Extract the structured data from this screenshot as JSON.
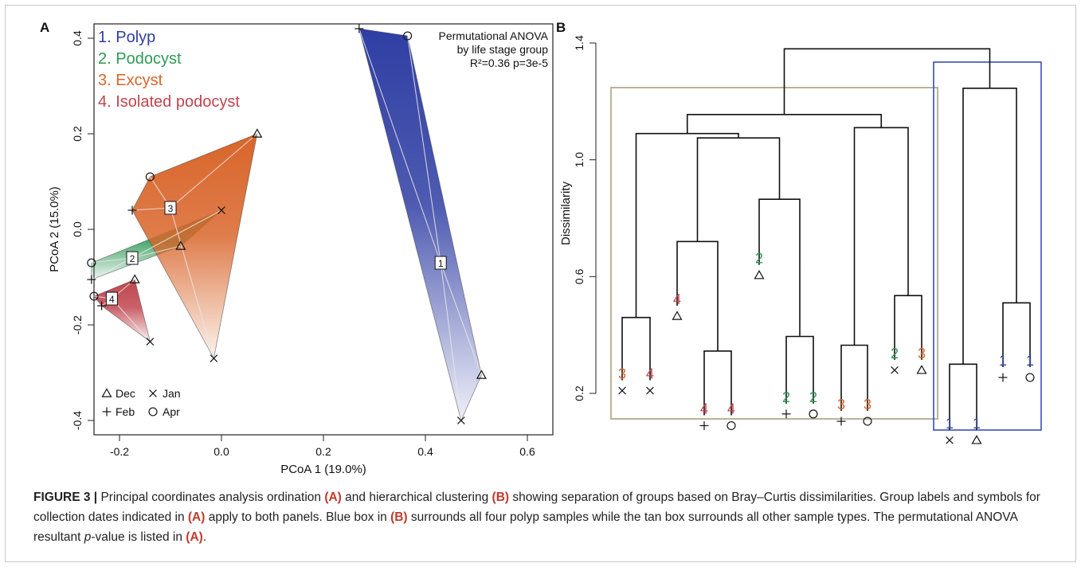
{
  "figure": {
    "colors": {
      "polyp": "#2f3ea3",
      "podocyst": "#2e9a55",
      "excyst": "#d9652a",
      "isolated": "#c0454e",
      "tan_box": "#b9b49a",
      "blue_box": "#3a4cb8"
    },
    "panel_a": {
      "panel_label": "A",
      "legend_groups": [
        "1. Polyp",
        "2. Podocyst",
        "3. Excyst",
        "4. Isolated podocyst"
      ],
      "annotation": [
        "Permutational ANOVA",
        "by life stage group",
        "R²=0.36 p=3e-5"
      ],
      "symbol_legend": [
        {
          "symbol": "triangle",
          "label": "Dec"
        },
        {
          "symbol": "cross",
          "label": "Jan"
        },
        {
          "symbol": "plus",
          "label": "Feb"
        },
        {
          "symbol": "circle",
          "label": "Apr"
        }
      ],
      "centroid_labels": [
        "1",
        "2",
        "3",
        "4"
      ]
    },
    "panel_b": {
      "panel_label": "B",
      "ylabel": "Dissimilarity"
    }
  },
  "chart_data": [
    {
      "type": "scatter",
      "title": "",
      "xlabel": "PCoA 1 (19.0%)",
      "ylabel": "PCoA 2 (15.0%)",
      "xlim": [
        -0.25,
        0.65
      ],
      "ylim": [
        -0.43,
        0.43
      ],
      "x_ticks": [
        "-0.2",
        "0.0",
        "0.2",
        "0.4",
        "0.6"
      ],
      "y_ticks": [
        "-0.4",
        "-0.2",
        "0.0",
        "0.2",
        "0.4"
      ],
      "grid": false,
      "legend": "top-left",
      "series": [
        {
          "name": "1. Polyp",
          "group": 1,
          "centroid": [
            0.43,
            -0.07
          ],
          "points": [
            {
              "x": 0.27,
              "y": 0.42,
              "month": "Feb"
            },
            {
              "x": 0.365,
              "y": 0.405,
              "month": "Apr"
            },
            {
              "x": 0.51,
              "y": -0.305,
              "month": "Dec"
            },
            {
              "x": 0.47,
              "y": -0.4,
              "month": "Jan"
            }
          ]
        },
        {
          "name": "2. Podocyst",
          "group": 2,
          "centroid": [
            -0.175,
            -0.06
          ],
          "points": [
            {
              "x": -0.255,
              "y": -0.07,
              "month": "Apr"
            },
            {
              "x": -0.255,
              "y": -0.105,
              "month": "Feb"
            },
            {
              "x": -0.08,
              "y": -0.035,
              "month": "Dec"
            },
            {
              "x": 0.0,
              "y": 0.04,
              "month": "Jan"
            }
          ]
        },
        {
          "name": "3. Excyst",
          "group": 3,
          "centroid": [
            -0.1,
            0.045
          ],
          "points": [
            {
              "x": -0.14,
              "y": 0.11,
              "month": "Apr"
            },
            {
              "x": -0.175,
              "y": 0.04,
              "month": "Feb"
            },
            {
              "x": 0.07,
              "y": 0.2,
              "month": "Dec"
            },
            {
              "x": -0.015,
              "y": -0.27,
              "month": "Jan"
            }
          ]
        },
        {
          "name": "4. Isolated podocyst",
          "group": 4,
          "centroid": [
            -0.215,
            -0.145
          ],
          "points": [
            {
              "x": -0.25,
              "y": -0.14,
              "month": "Apr"
            },
            {
              "x": -0.235,
              "y": -0.16,
              "month": "Feb"
            },
            {
              "x": -0.17,
              "y": -0.105,
              "month": "Dec"
            },
            {
              "x": -0.14,
              "y": -0.235,
              "month": "Jan"
            }
          ]
        }
      ]
    },
    {
      "type": "dendrogram",
      "title": "",
      "xlabel": "",
      "ylabel": "Dissimilarity",
      "ylim": [
        0.1,
        1.4
      ],
      "y_ticks": [
        "0.2",
        "0.6",
        "1.0",
        "1.4"
      ],
      "leaves": [
        {
          "group": "3",
          "month": "Jan",
          "height": 0.245
        },
        {
          "group": "4",
          "month": "Jan",
          "height": 0.245
        },
        {
          "group": "4",
          "month": "Dec",
          "height": 0.5
        },
        {
          "group": "4",
          "month": "Feb",
          "height": 0.125
        },
        {
          "group": "4",
          "month": "Apr",
          "height": 0.125
        },
        {
          "group": "2",
          "month": "Dec",
          "height": 0.64
        },
        {
          "group": "2",
          "month": "Feb",
          "height": 0.165
        },
        {
          "group": "2",
          "month": "Apr",
          "height": 0.165
        },
        {
          "group": "3",
          "month": "Feb",
          "height": 0.14
        },
        {
          "group": "3",
          "month": "Apr",
          "height": 0.14
        },
        {
          "group": "2",
          "month": "Jan",
          "height": 0.315
        },
        {
          "group": "3",
          "month": "Dec",
          "height": 0.315
        },
        {
          "group": "1",
          "month": "Jan",
          "height": 0.075
        },
        {
          "group": "1",
          "month": "Dec",
          "height": 0.075
        },
        {
          "group": "1",
          "month": "Feb",
          "height": 0.29
        },
        {
          "group": "1",
          "month": "Apr",
          "height": 0.29
        }
      ],
      "merges": [
        {
          "left": "leaf0",
          "right": "leaf1",
          "height": 0.46
        },
        {
          "left": "leaf3",
          "right": "leaf4",
          "height": 0.345
        },
        {
          "left": "leaf2",
          "right": "m1",
          "height": 0.72
        },
        {
          "left": "leaf6",
          "right": "leaf7",
          "height": 0.395
        },
        {
          "left": "leaf5",
          "right": "m3",
          "height": 0.865
        },
        {
          "left": "m2",
          "right": "m4",
          "height": 1.075
        },
        {
          "left": "m0",
          "right": "m5",
          "height": 1.09
        },
        {
          "left": "leaf10",
          "right": "leaf11",
          "height": 0.535
        },
        {
          "left": "leaf8",
          "right": "leaf9",
          "height": 0.365
        },
        {
          "left": "m8",
          "right": "m7",
          "height": 1.11
        },
        {
          "left": "m6",
          "right": "m9",
          "height": 1.155
        },
        {
          "left": "leaf12",
          "right": "leaf13",
          "height": 0.3
        },
        {
          "left": "leaf14",
          "right": "leaf15",
          "height": 0.51
        },
        {
          "left": "m11",
          "right": "m12",
          "height": 1.245
        },
        {
          "left": "m10",
          "right": "m13",
          "height": 1.38
        }
      ],
      "boxes": [
        {
          "color_key": "tan_box",
          "leaf_range": [
            0,
            11
          ]
        },
        {
          "color_key": "blue_box",
          "leaf_range": [
            12,
            15
          ]
        }
      ]
    }
  ],
  "caption": {
    "label": "FIGURE 3 |",
    "t1": " Principal coordinates analysis ordination ",
    "r1": "(A)",
    "t2": " and hierarchical clustering ",
    "r2": "(B)",
    "t3": " showing separation of groups based on Bray–Curtis dissimilarities. Group labels and symbols for collection dates indicated in ",
    "r3": "(A)",
    "t4": " apply to both panels. Blue box in ",
    "r4": "(B)",
    "t5": " surrounds all four polyp samples while the tan box surrounds all other sample types. The permutational ANOVA resultant ",
    "p_italic": "p",
    "t6": "-value is listed in ",
    "r5": "(A)",
    "t7": "."
  }
}
